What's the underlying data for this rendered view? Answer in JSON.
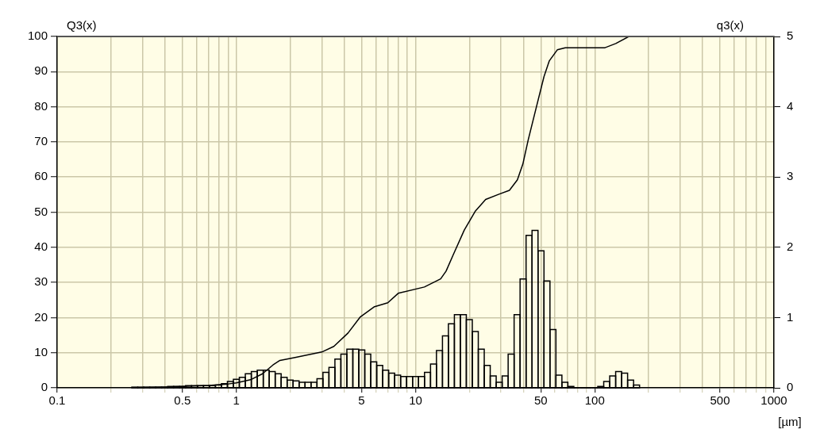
{
  "chart_data": {
    "type": "histogram",
    "xlabel": "[µm]",
    "ylabel": "Q3(x)",
    "y2label": "q3(x)",
    "log": "x",
    "grid": true,
    "xlim": [
      0.1,
      1000
    ],
    "xticks": [
      0.1,
      {
        "value": 0.2,
        "label": null
      },
      {
        "value": 0.3,
        "label": null
      },
      {
        "value": 0.4,
        "label": null
      },
      0.5,
      {
        "value": 0.6,
        "label": null
      },
      {
        "value": 0.7,
        "label": null
      },
      {
        "value": 0.8,
        "label": null
      },
      {
        "value": 0.9,
        "label": null
      },
      1,
      {
        "value": 2,
        "label": null
      },
      {
        "value": 3,
        "label": null
      },
      {
        "value": 4,
        "label": null
      },
      5,
      {
        "value": 6,
        "label": null
      },
      {
        "value": 7,
        "label": null
      },
      {
        "value": 8,
        "label": null
      },
      {
        "value": 9,
        "label": null
      },
      10,
      {
        "value": 20,
        "label": null
      },
      {
        "value": 30,
        "label": null
      },
      {
        "value": 40,
        "label": null
      },
      50,
      {
        "value": 60,
        "label": null
      },
      {
        "value": 70,
        "label": null
      },
      {
        "value": 80,
        "label": null
      },
      {
        "value": 90,
        "label": null
      },
      100,
      {
        "value": 200,
        "label": null
      },
      {
        "value": 300,
        "label": null
      },
      {
        "value": 400,
        "label": null
      },
      500,
      {
        "value": 600,
        "label": null
      },
      {
        "value": 700,
        "label": null
      },
      {
        "value": 800,
        "label": null
      },
      {
        "value": 900,
        "label": null
      },
      1000
    ],
    "ylim": [
      0,
      100
    ],
    "yticks": [
      0,
      10,
      20,
      30,
      40,
      50,
      60,
      70,
      80,
      90,
      100
    ],
    "y2lim": [
      0,
      5
    ],
    "y2ticks": [
      0,
      1,
      2,
      3,
      4,
      5
    ],
    "series": [
      {
        "type": "histogram",
        "axis": "y2",
        "color": "#000000",
        "bins": [
          0.261,
          0.2818,
          0.3043,
          0.3286,
          0.3548,
          0.3831,
          0.4137,
          0.4467,
          0.4823,
          0.5208,
          0.5623,
          0.6072,
          0.6556,
          0.7079,
          0.7644,
          0.8254,
          0.8913,
          0.9624,
          1.039,
          1.122,
          1.212,
          1.308,
          1.413,
          1.525,
          1.647,
          1.778,
          1.92,
          2.073,
          2.239,
          2.417,
          2.61,
          2.818,
          3.043,
          3.286,
          3.548,
          3.831,
          4.137,
          4.467,
          4.823,
          5.208,
          5.623,
          6.072,
          6.556,
          7.079,
          7.644,
          8.254,
          8.913,
          9.624,
          10.39,
          11.22,
          12.12,
          13.08,
          14.13,
          15.25,
          16.47,
          17.78,
          19.2,
          20.73,
          22.39,
          24.17,
          26.1,
          28.18,
          30.43,
          32.86,
          35.48,
          38.31,
          41.37,
          44.67,
          48.23,
          52.08,
          56.23,
          60.72,
          65.56,
          70.79,
          76.44,
          82.54,
          89.13,
          96.24,
          103.9,
          112.2,
          121.2,
          130.8,
          141.3,
          152.5,
          164.7,
          177.8
        ],
        "values": [
          0.01,
          0.01,
          0.01,
          0.01,
          0.01,
          0.01,
          0.02,
          0.02,
          0.02,
          0.03,
          0.03,
          0.03,
          0.03,
          0.03,
          0.04,
          0.06,
          0.09,
          0.12,
          0.15,
          0.2,
          0.23,
          0.25,
          0.25,
          0.23,
          0.2,
          0.15,
          0.11,
          0.1,
          0.08,
          0.08,
          0.08,
          0.13,
          0.22,
          0.29,
          0.41,
          0.48,
          0.55,
          0.55,
          0.54,
          0.48,
          0.37,
          0.32,
          0.25,
          0.21,
          0.18,
          0.16,
          0.16,
          0.16,
          0.16,
          0.22,
          0.34,
          0.53,
          0.74,
          0.91,
          1.04,
          1.04,
          0.97,
          0.8,
          0.55,
          0.32,
          0.17,
          0.08,
          0.17,
          0.48,
          1.04,
          1.55,
          2.17,
          2.24,
          1.95,
          1.52,
          0.83,
          0.18,
          0.08,
          0.02,
          0,
          0,
          0,
          0,
          0.02,
          0.09,
          0.17,
          0.23,
          0.21,
          0.11,
          0.04
        ]
      },
      {
        "type": "line",
        "axis": "y",
        "color": "#000000",
        "x": [
          0.25,
          0.4,
          0.5,
          0.7,
          0.9,
          1.0,
          1.2,
          1.4,
          1.6,
          1.75,
          2.1,
          3.0,
          3.5,
          4.2,
          4.9,
          5.9,
          7.0,
          8.0,
          11.2,
          13.8,
          14.8,
          16.3,
          18.7,
          21.5,
          24.6,
          29.2,
          33.4,
          37,
          39.7,
          42.5,
          47,
          52.1,
          55.8,
          61.8,
          68.5,
          114,
          131,
          155,
          254
        ],
        "values": [
          0,
          0.2,
          0.4,
          0.7,
          1.1,
          1.4,
          2.3,
          4.0,
          6.5,
          7.8,
          8.6,
          10.2,
          11.8,
          15.6,
          20.1,
          23.1,
          24.2,
          26.9,
          28.7,
          31,
          33.2,
          38.1,
          44.9,
          50.2,
          53.6,
          55.1,
          56.2,
          59.2,
          63.7,
          70.5,
          79.5,
          88.6,
          93.1,
          96.2,
          96.8,
          96.8,
          98,
          100,
          100
        ]
      }
    ]
  }
}
